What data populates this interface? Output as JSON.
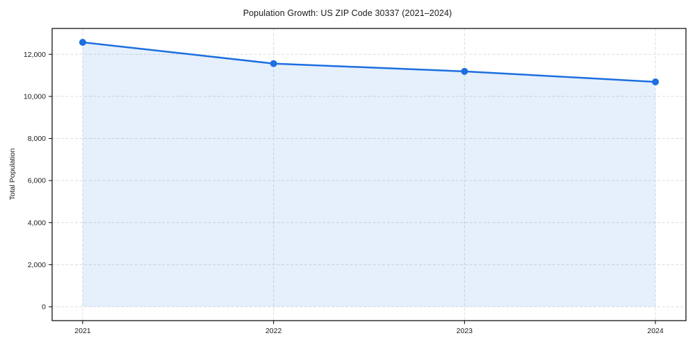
{
  "chart_data": {
    "type": "line",
    "title": "Population Growth: US ZIP Code 30337 (2021–2024)",
    "xlabel": "",
    "ylabel": "Total Population",
    "x": [
      2021,
      2022,
      2023,
      2024
    ],
    "x_tick_labels": [
      "2021",
      "2022",
      "2023",
      "2024"
    ],
    "series": [
      {
        "name": "Total Population",
        "values": [
          12570,
          11560,
          11190,
          10690
        ]
      }
    ],
    "y_ticks": [
      0,
      2000,
      4000,
      6000,
      8000,
      10000,
      12000
    ],
    "y_tick_labels": [
      "0",
      "2,000",
      "4,000",
      "6,000",
      "8,000",
      "10,000",
      "12,000"
    ],
    "xlim": [
      2020.84,
      2024.16
    ],
    "ylim": [
      -660,
      13230
    ],
    "grid": true,
    "grid_style": "dashed",
    "legend": "none",
    "area_fill_to": 0,
    "colors": {
      "line": "#1b6fe0",
      "marker": "#1b6fe0",
      "fill": "#1b6fe0",
      "fill_opacity": "0.11",
      "grid": "#dcdcdc",
      "spine": "#000000",
      "text": "#1a1a1a",
      "background": "#ffffff"
    }
  }
}
